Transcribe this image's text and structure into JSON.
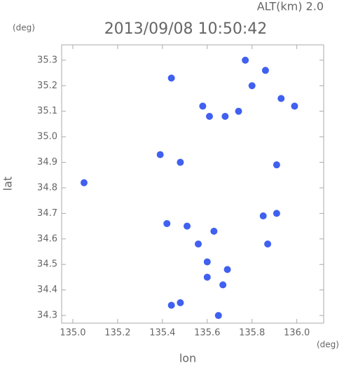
{
  "chart_data": {
    "type": "scatter",
    "title": "2013/09/08 10:50:42",
    "annotation": "ALT(km) 2.0",
    "y_unit": "(deg)",
    "x_unit": "(deg)",
    "xlabel": "lon",
    "ylabel": "lat",
    "xlim": [
      134.95,
      136.12
    ],
    "ylim": [
      34.27,
      35.36
    ],
    "xticks": [
      {
        "value": 135,
        "label": "135.0"
      },
      135.2,
      135.4,
      135.6,
      135.8,
      {
        "value": 136,
        "label": "136.0"
      }
    ],
    "yticks": [
      34.3,
      34.4,
      34.5,
      34.6,
      34.7,
      34.8,
      34.9,
      {
        "value": 35,
        "label": "35.0"
      },
      35.1,
      35.2,
      35.3
    ],
    "color": "#4060f0",
    "x": [
      135.86,
      135.8,
      135.93,
      135.74,
      135.68,
      135.99,
      135.77,
      135.58,
      135.44,
      135.48,
      135.91,
      135.05,
      135.85,
      135.91,
      135.87,
      135.56,
      135.6,
      135.69,
      135.67,
      135.6,
      135.48,
      135.44,
      135.65,
      135.51,
      135.63,
      135.42,
      135.39,
      135.61
    ],
    "values": [
      35.26,
      35.2,
      35.15,
      35.1,
      35.08,
      35.12,
      35.3,
      35.12,
      35.23,
      34.9,
      34.89,
      34.82,
      34.69,
      34.7,
      34.58,
      34.58,
      34.51,
      34.48,
      34.42,
      34.45,
      34.35,
      34.34,
      34.3,
      34.65,
      34.63,
      34.66,
      34.93,
      35.08
    ]
  }
}
